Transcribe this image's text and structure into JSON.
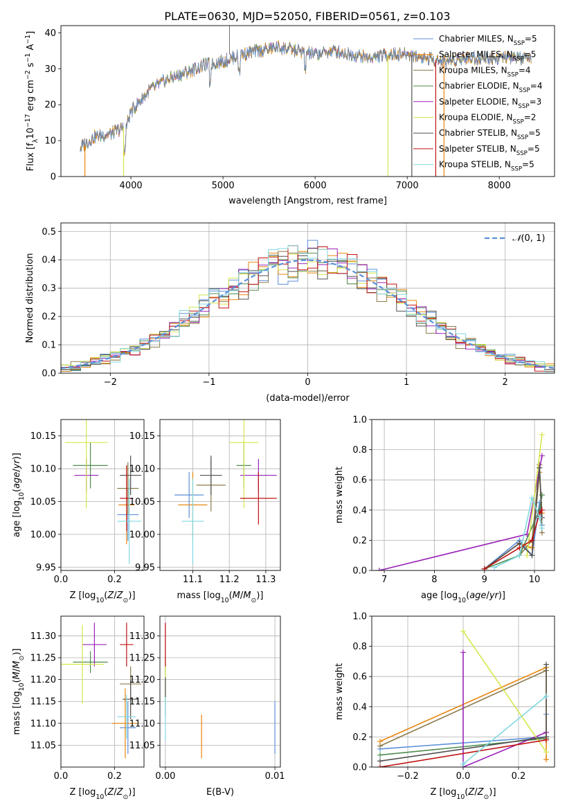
{
  "figure_title": "PLATE=0630, MJD=52050, FIBERID=0561, z=0.103",
  "series": [
    {
      "name": "Chabrier MILES",
      "nssp": "5",
      "color": "#5B8FD9"
    },
    {
      "name": "Salpeter MILES",
      "nssp": "5",
      "color": "#E8850A"
    },
    {
      "name": "Kroupa MILES",
      "nssp": "4",
      "color": "#8B7A4A"
    },
    {
      "name": "Chabrier ELODIE",
      "nssp": "4",
      "color": "#4E8B4E"
    },
    {
      "name": "Salpeter ELODIE",
      "nssp": "3",
      "color": "#9A22B8"
    },
    {
      "name": "Kroupa ELODIE",
      "nssp": "2",
      "color": "#D6E64A"
    },
    {
      "name": "Chabrier STELIB",
      "nssp": "5",
      "color": "#505050"
    },
    {
      "name": "Salpeter STELIB",
      "nssp": "5",
      "color": "#C01010"
    },
    {
      "name": "Kroupa STELIB",
      "nssp": "5",
      "color": "#7FD8E0"
    }
  ],
  "chart_data": [
    {
      "id": "spectrum",
      "type": "line",
      "title": "PLATE=0630, MJD=52050, FIBERID=0561, z=0.103",
      "xlabel": "wavelength [Angstrom, rest frame]",
      "ylabel": "Flux [f_λ 10^-17 erg cm^-2 s^-1 A^-1]",
      "xlim": [
        3240,
        8600
      ],
      "ylim": [
        0,
        42
      ],
      "xticks": [
        4000,
        5000,
        6000,
        7000,
        8000
      ],
      "yticks": [
        0,
        10,
        20,
        30,
        40
      ],
      "legend_position": "right",
      "continuum": {
        "x": [
          3450,
          3600,
          3800,
          3950,
          4000,
          4200,
          4400,
          4600,
          4800,
          5000,
          5200,
          5400,
          5600,
          5800,
          6000,
          6200,
          6400,
          6600,
          6800,
          7000,
          7200,
          7400,
          7600,
          7800,
          8000,
          8200,
          8350
        ],
        "y": [
          8,
          11,
          12,
          14,
          18,
          24,
          27,
          29,
          31,
          32,
          34,
          35,
          36,
          35,
          34,
          35,
          34,
          33,
          34,
          34,
          33,
          32,
          33,
          33,
          33,
          33,
          32
        ]
      }
    },
    {
      "id": "residuals",
      "type": "histogram",
      "xlabel": "(data-model)/error",
      "ylabel": "Normed distribution",
      "xlim": [
        -2.5,
        2.5
      ],
      "ylim": [
        0,
        0.53
      ],
      "xticks": [
        -2,
        -1,
        0,
        1,
        2
      ],
      "yticks": [
        0,
        0.1,
        0.2,
        0.3,
        0.4,
        0.5
      ],
      "grid": true,
      "legend": "N(0,1)",
      "legend_position": "top-right",
      "bin_edges": [
        -2.5,
        -2.4,
        -2.3,
        -2.2,
        -2.1,
        -2.0,
        -1.9,
        -1.8,
        -1.7,
        -1.6,
        -1.5,
        -1.4,
        -1.3,
        -1.2,
        -1.1,
        -1.0,
        -0.9,
        -0.8,
        -0.7,
        -0.6,
        -0.5,
        -0.4,
        -0.3,
        -0.2,
        -0.1,
        0.0,
        0.1,
        0.2,
        0.3,
        0.4,
        0.5,
        0.6,
        0.7,
        0.8,
        0.9,
        1.0,
        1.1,
        1.2,
        1.3,
        1.4,
        1.5,
        1.6,
        1.7,
        1.8,
        1.9,
        2.0,
        2.1,
        2.2,
        2.3,
        2.4,
        2.5
      ],
      "normal_pdf": {
        "mean": 0,
        "std": 1
      }
    },
    {
      "id": "age_vs_Z",
      "type": "scatter",
      "xlabel": "Z [log10(Z/Z_sun)]",
      "ylabel": "age [log10(age/yr)]",
      "xlim": [
        0,
        0.31
      ],
      "ylim": [
        9.945,
        10.175
      ],
      "xticks": [
        0,
        0.2
      ],
      "yticks": [
        9.95,
        10.0,
        10.05,
        10.1,
        10.15
      ],
      "points": [
        {
          "x": 0.25,
          "y": 10.03,
          "xerr": 0.04,
          "yerr": 0.04
        },
        {
          "x": 0.245,
          "y": 10.045,
          "xerr": 0.03,
          "yerr": 0.06
        },
        {
          "x": 0.25,
          "y": 10.07,
          "xerr": 0.04,
          "yerr": 0.04
        },
        {
          "x": 0.11,
          "y": 10.105,
          "xerr": 0.065,
          "yerr": 0.035
        },
        {
          "x": 0.095,
          "y": 10.09,
          "xerr": 0.045,
          "yerr": 0.025
        },
        {
          "x": 0.095,
          "y": 10.14,
          "xerr": 0.08,
          "yerr": 0.1
        },
        {
          "x": 0.26,
          "y": 10.09,
          "xerr": 0.04,
          "yerr": 0.03
        },
        {
          "x": 0.245,
          "y": 10.055,
          "xerr": 0.025,
          "yerr": 0.05
        },
        {
          "x": 0.255,
          "y": 10.02,
          "xerr": 0.045,
          "yerr": 0.065
        }
      ]
    },
    {
      "id": "age_vs_mass",
      "type": "scatter",
      "xlabel": "mass [log10(M/M_sun)]",
      "ylabel": "",
      "xlim": [
        11.01,
        11.34
      ],
      "ylim": [
        9.945,
        10.175
      ],
      "xticks": [
        11.1,
        11.2,
        11.3
      ],
      "yticks": [
        9.95,
        10.0,
        10.05,
        10.1,
        10.15
      ],
      "points": [
        {
          "x": 11.09,
          "y": 10.06,
          "xerr": 0.04,
          "yerr": 0.035
        },
        {
          "x": 11.1,
          "y": 10.045,
          "xerr": 0.04,
          "yerr": 0.05
        },
        {
          "x": 11.15,
          "y": 10.075,
          "xerr": 0.04,
          "yerr": 0.04
        },
        {
          "x": 11.24,
          "y": 10.105,
          "xerr": 0.02,
          "yerr": 0.035
        },
        {
          "x": 11.28,
          "y": 10.09,
          "xerr": 0.05,
          "yerr": 0.025
        },
        {
          "x": 11.24,
          "y": 10.14,
          "xerr": 0.04,
          "yerr": 0.1
        },
        {
          "x": 11.15,
          "y": 10.09,
          "xerr": 0.03,
          "yerr": 0.03
        },
        {
          "x": 11.28,
          "y": 10.055,
          "xerr": 0.05,
          "yerr": 0.04
        },
        {
          "x": 11.1,
          "y": 10.02,
          "xerr": 0.03,
          "yerr": 0.065
        }
      ]
    },
    {
      "id": "weight_vs_age",
      "type": "line",
      "xlabel": "age [log10(age/yr)]",
      "ylabel": "mass weight",
      "xlim": [
        6.75,
        10.4
      ],
      "ylim": [
        0,
        1
      ],
      "xticks": [
        7,
        8,
        9,
        10
      ],
      "yticks": [
        0,
        0.2,
        0.4,
        0.6,
        0.8,
        1.0
      ],
      "lines": [
        {
          "x": [
            9.0,
            9.7,
            9.95,
            10.1,
            10.15
          ],
          "y": [
            0.01,
            0.2,
            0.1,
            0.45,
            0.3
          ]
        },
        {
          "x": [
            9.0,
            9.7,
            9.95,
            10.1,
            10.15
          ],
          "y": [
            0.01,
            0.18,
            0.15,
            0.65,
            0.38
          ]
        },
        {
          "x": [
            9.7,
            9.95,
            10.1,
            10.15
          ],
          "y": [
            0.1,
            0.2,
            0.7,
            0.25
          ]
        },
        {
          "x": [
            9.0,
            9.7,
            10.1,
            10.15
          ],
          "y": [
            0.01,
            0.1,
            0.4,
            0.5
          ]
        },
        {
          "x": [
            6.9,
            9.85,
            10.15
          ],
          "y": [
            0.0,
            0.24,
            0.76
          ]
        },
        {
          "x": [
            9.85,
            10.15
          ],
          "y": [
            0.1,
            0.9
          ]
        },
        {
          "x": [
            9.0,
            9.7,
            9.95,
            10.1,
            10.15
          ],
          "y": [
            0.01,
            0.18,
            0.1,
            0.68,
            0.35
          ]
        },
        {
          "x": [
            9.0,
            9.7,
            9.95,
            10.1,
            10.15
          ],
          "y": [
            0.01,
            0.15,
            0.2,
            0.38,
            0.4
          ]
        },
        {
          "x": [
            9.2,
            9.7,
            9.95,
            10.1,
            10.15
          ],
          "y": [
            0.02,
            0.1,
            0.48,
            0.35,
            0.28
          ]
        }
      ]
    },
    {
      "id": "mass_vs_Z",
      "type": "scatter",
      "xlabel": "Z [log10(Z/Z_sun)]",
      "ylabel": "mass [log10(M/M_sun)]",
      "xlim": [
        0,
        0.31
      ],
      "ylim": [
        11.0,
        11.345
      ],
      "xticks": [
        0,
        0.2
      ],
      "yticks": [
        11.05,
        11.1,
        11.15,
        11.2,
        11.25,
        11.3
      ],
      "points": [
        {
          "x": 0.25,
          "y": 11.09,
          "xerr": 0.03,
          "yerr": 0.06
        },
        {
          "x": 0.24,
          "y": 11.1,
          "xerr": 0.05,
          "yerr": 0.08
        },
        {
          "x": 0.26,
          "y": 11.19,
          "xerr": 0.04,
          "yerr": 0.04
        },
        {
          "x": 0.11,
          "y": 11.24,
          "xerr": 0.065,
          "yerr": 0.025
        },
        {
          "x": 0.125,
          "y": 11.28,
          "xerr": 0.045,
          "yerr": 0.05
        },
        {
          "x": 0.08,
          "y": 11.235,
          "xerr": 0.08,
          "yerr": 0.09
        },
        {
          "x": 0.26,
          "y": 11.155,
          "xerr": 0.03,
          "yerr": 0.045
        },
        {
          "x": 0.245,
          "y": 11.28,
          "xerr": 0.025,
          "yerr": 0.05
        },
        {
          "x": 0.245,
          "y": 11.115,
          "xerr": 0.035,
          "yerr": 0.05
        }
      ]
    },
    {
      "id": "mass_vs_ebv",
      "type": "scatter",
      "xlabel": "E(B-V)",
      "ylabel": "",
      "xlim": [
        -0.0005,
        0.0105
      ],
      "ylim": [
        11.0,
        11.345
      ],
      "xticks": [
        0.0,
        0.01
      ],
      "yticks": [
        11.05,
        11.1,
        11.15,
        11.2,
        11.25,
        11.3
      ],
      "points": [
        {
          "x": 0.01,
          "y": 11.09,
          "yerr": 0.06
        },
        {
          "x": 0.0033,
          "y": 11.07,
          "yerr": 0.05
        },
        {
          "x": 0.0,
          "y": 11.2,
          "yerr": 0.04
        },
        {
          "x": 0.0,
          "y": 11.24,
          "yerr": 0.025
        },
        {
          "x": 0.0,
          "y": 11.28,
          "yerr": 0.05
        },
        {
          "x": 0.0,
          "y": 11.235,
          "yerr": 0.09
        },
        {
          "x": 0.0,
          "y": 11.16,
          "yerr": 0.045
        },
        {
          "x": 0.0,
          "y": 11.28,
          "yerr": 0.05
        },
        {
          "x": 0.0,
          "y": 11.11,
          "yerr": 0.05
        }
      ]
    },
    {
      "id": "weight_vs_Z",
      "type": "line",
      "xlabel": "Z [log10(Z/Z_sun)]",
      "ylabel": "mass weight",
      "xlim": [
        -0.33,
        0.33
      ],
      "ylim": [
        0,
        1
      ],
      "xticks": [
        -0.2,
        0.0,
        0.2
      ],
      "yticks": [
        0,
        0.2,
        0.4,
        0.6,
        0.8,
        1.0
      ],
      "lines": [
        {
          "x": [
            -0.3,
            0.3,
            0.3
          ],
          "y": [
            0.12,
            0.2,
            0.35
          ]
        },
        {
          "x": [
            -0.3,
            0.3,
            0.3
          ],
          "y": [
            0.17,
            0.66,
            0.05
          ]
        },
        {
          "x": [
            -0.3,
            0.3
          ],
          "y": [
            0.14,
            0.64
          ]
        },
        {
          "x": [
            -0.3,
            0.3
          ],
          "y": [
            0.08,
            0.19
          ]
        },
        {
          "x": [
            0.0,
            0.0,
            0.3
          ],
          "y": [
            0.76,
            0.0,
            0.23
          ]
        },
        {
          "x": [
            0.0,
            0.3
          ],
          "y": [
            0.9,
            0.1
          ]
        },
        {
          "x": [
            -0.3,
            0.3,
            0.3
          ],
          "y": [
            0.04,
            0.2,
            0.68
          ]
        },
        {
          "x": [
            -0.3,
            0.3
          ],
          "y": [
            0.0,
            0.18
          ]
        },
        {
          "x": [
            0.0,
            0.3
          ],
          "y": [
            0.02,
            0.47
          ]
        }
      ]
    }
  ]
}
